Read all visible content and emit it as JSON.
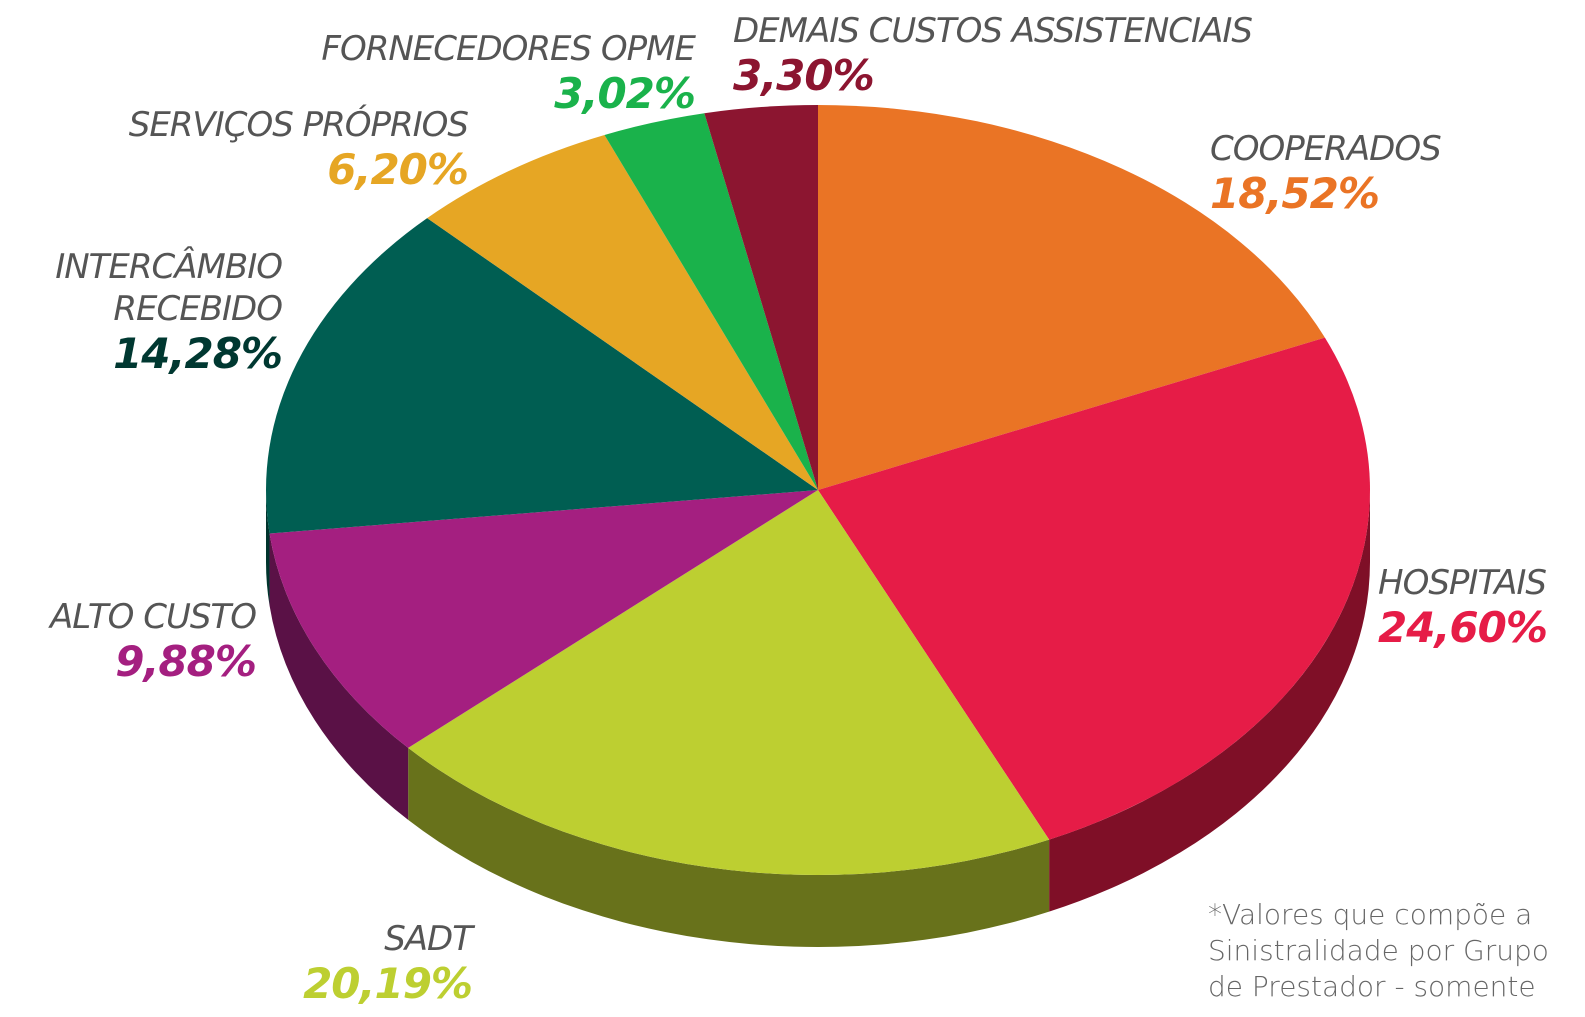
{
  "chart_data": {
    "type": "pie",
    "categories": [
      "COOPERADOS",
      "HOSPITAIS",
      "SADT",
      "ALTO CUSTO",
      "INTERCÂMBIO RECEBIDO",
      "SERVIÇOS PRÓPRIOS",
      "FORNECEDORES OPME",
      "DEMAIS CUSTOS ASSISTENCIAIS"
    ],
    "values": [
      18.52,
      24.6,
      20.19,
      9.88,
      14.28,
      6.2,
      3.02,
      3.3
    ],
    "value_labels": [
      "18,52%",
      "24,60%",
      "20,19%",
      "9,88%",
      "14,28%",
      "6,20%",
      "3,02%",
      "3,30%"
    ],
    "colors": [
      "#ea7425",
      "#e61c47",
      "#bdcf31",
      "#a41f80",
      "#005e52",
      "#e6a624",
      "#1ab24b",
      "#8c1530"
    ],
    "note": "*Valores que compõe a Sinistralidade por Grupo de Prestador - somente"
  }
}
